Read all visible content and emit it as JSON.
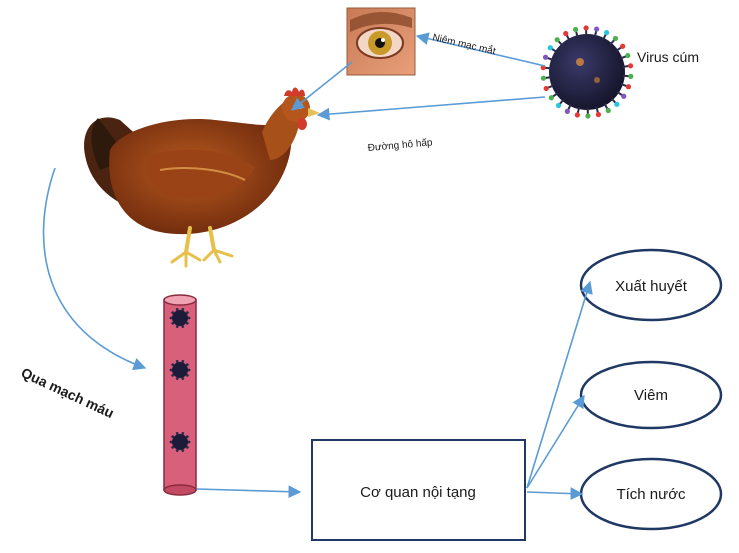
{
  "labels": {
    "virus": "Virus cúm",
    "eye_mucosa": "Niêm mạc mắt",
    "respiratory": "Đường hô hấp",
    "blood_vessel": "Qua mạch máu",
    "organs": "Cơ quan nội tạng",
    "hemorrhage": "Xuất huyết",
    "inflammation": "Viêm",
    "edema": "Tích nước"
  },
  "colors": {
    "arrow": "#5b9bd5",
    "box_border": "#1f3864",
    "vessel_fill": "#d9607a",
    "vessel_stroke": "#8a2b3f",
    "virus_body": "#1c1b3a",
    "hen_body": "#8b3a12"
  },
  "icons": {
    "virus": "virus-particle-icon",
    "eye": "chicken-eye-closeup-icon",
    "hen": "hen-illustration-icon",
    "vessel": "blood-vessel-icon"
  }
}
